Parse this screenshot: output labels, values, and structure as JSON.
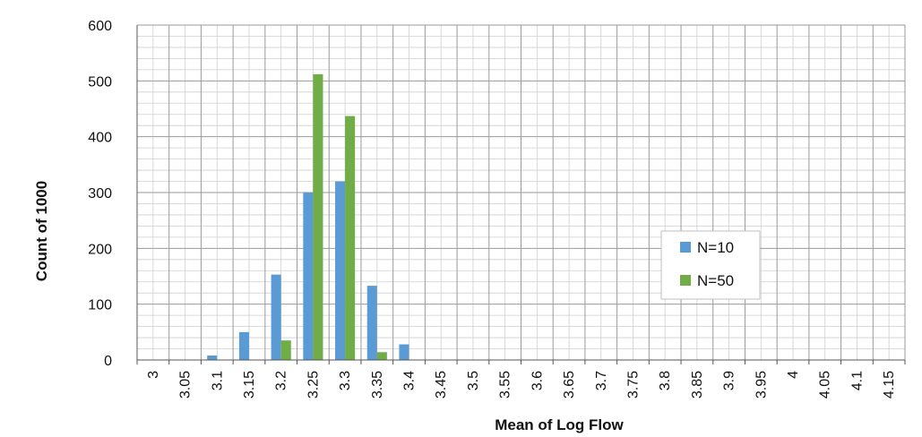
{
  "chart_data": {
    "type": "bar",
    "title": "",
    "xlabel": "Mean of Log Flow",
    "ylabel": "Count of 1000",
    "ylim": [
      0,
      600
    ],
    "y_ticks": [
      "0",
      "100",
      "200",
      "300",
      "400",
      "500",
      "600"
    ],
    "categories": [
      "3",
      "3.05",
      "3.1",
      "3.15",
      "3.2",
      "3.25",
      "3.3",
      "3.35",
      "3.4",
      "3.45",
      "3.5",
      "3.55",
      "3.6",
      "3.65",
      "3.7",
      "3.75",
      "3.8",
      "3.85",
      "3.9",
      "3.95",
      "4",
      "4.05",
      "4.1",
      "4.15"
    ],
    "series": [
      {
        "name": "N=10",
        "color": "#5b9bd5",
        "values": [
          0,
          0,
          8,
          50,
          153,
          300,
          320,
          133,
          28,
          0,
          0,
          0,
          0,
          0,
          0,
          0,
          0,
          0,
          0,
          0,
          0,
          0,
          0,
          0
        ]
      },
      {
        "name": "N=50",
        "color": "#70ad47",
        "values": [
          0,
          0,
          0,
          0,
          35,
          512,
          437,
          14,
          0,
          0,
          0,
          0,
          0,
          0,
          0,
          0,
          0,
          0,
          0,
          0,
          0,
          0,
          0,
          0
        ]
      }
    ],
    "grid": true,
    "legend_position": "right"
  }
}
